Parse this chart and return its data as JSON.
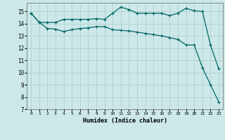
{
  "title": "",
  "xlabel": "Humidex (Indice chaleur)",
  "bg_color": "#cce8e8",
  "grid_color": "#b0d0d0",
  "line_color": "#006666",
  "xlim": [
    -0.5,
    23.5
  ],
  "ylim": [
    7,
    15.7
  ],
  "xtick_labels": [
    "0",
    "1",
    "2",
    "3",
    "4",
    "5",
    "6",
    "7",
    "8",
    "9",
    "10",
    "11",
    "12",
    "13",
    "14",
    "15",
    "16",
    "17",
    "18",
    "19",
    "20",
    "21",
    "22",
    "23"
  ],
  "xtick_vals": [
    0,
    1,
    2,
    3,
    4,
    5,
    6,
    7,
    8,
    9,
    10,
    11,
    12,
    13,
    14,
    15,
    16,
    17,
    18,
    19,
    20,
    21,
    22,
    23
  ],
  "ytick_vals": [
    7,
    8,
    9,
    10,
    11,
    12,
    13,
    14,
    15
  ],
  "line1_x": [
    0,
    1,
    2,
    3,
    4,
    5,
    6,
    7,
    8,
    9,
    10,
    11,
    12,
    13,
    14,
    15,
    16,
    17,
    18,
    19,
    20,
    21,
    22,
    23
  ],
  "line1_y": [
    14.85,
    14.1,
    14.1,
    14.1,
    14.35,
    14.35,
    14.35,
    14.35,
    14.4,
    14.35,
    14.85,
    15.35,
    15.15,
    14.85,
    14.85,
    14.85,
    14.85,
    14.65,
    14.85,
    15.25,
    15.05,
    15.0,
    12.25,
    10.3
  ],
  "line2_x": [
    0,
    1,
    2,
    3,
    4,
    5,
    6,
    7,
    8,
    9,
    10,
    11,
    12,
    13,
    14,
    15,
    16,
    17,
    18,
    19,
    20,
    21,
    22,
    23
  ],
  "line2_y": [
    14.85,
    14.1,
    13.6,
    13.55,
    13.35,
    13.5,
    13.6,
    13.65,
    13.75,
    13.75,
    13.5,
    13.45,
    13.4,
    13.3,
    13.2,
    13.1,
    13.0,
    12.85,
    12.7,
    12.25,
    12.25,
    10.4,
    9.0,
    7.6
  ]
}
